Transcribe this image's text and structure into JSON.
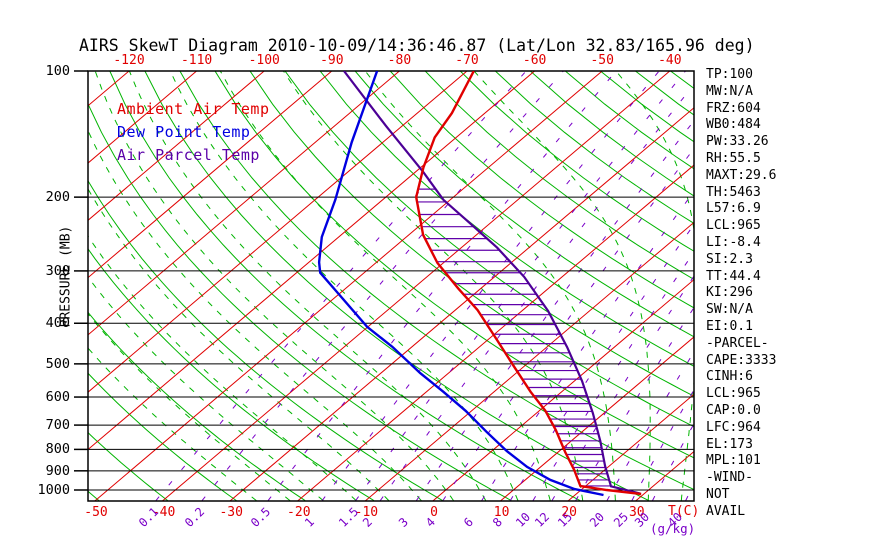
{
  "title": "AIRS SkewT Diagram 2010-10-09/14:36:46.87 (Lat/Lon 32.83/165.96 deg)",
  "legend": {
    "items": [
      {
        "label": "Ambient Air Temp",
        "color": "#e00000"
      },
      {
        "label": "Dew Point Temp",
        "color": "#0000e0"
      },
      {
        "label": "Air Parcel Temp",
        "color": "#5a00a8"
      }
    ]
  },
  "axes": {
    "pressure_label": "PRESSURE (MB)",
    "pressure_ticks": [
      100,
      200,
      300,
      400,
      500,
      600,
      700,
      800,
      900,
      1000
    ],
    "temp_top_ticks": [
      -120,
      -110,
      -100,
      -90,
      -80,
      -70,
      -60,
      -50,
      -40
    ],
    "temp_bottom_ticks": [
      -50,
      -40,
      -30,
      -20,
      -10,
      0,
      10,
      20,
      30
    ],
    "temp_unit": "T(C)",
    "mixing_ratio_ticks": [
      "0.1",
      "0.2",
      "0.5",
      "1",
      "1.5",
      "2",
      "3",
      "4",
      "6",
      "8",
      "10",
      "12",
      "15",
      "20",
      "25",
      "30",
      "40"
    ],
    "mixing_ratio_unit": "(g/kg)"
  },
  "stats_panel": {
    "lines": [
      "TP:100",
      "MW:N/A",
      "FRZ:604",
      "WB0:484",
      "PW:33.26",
      "RH:55.5",
      "MAXT:29.6",
      "TH:5463",
      "L57:6.9",
      "LCL:965",
      "LI:-8.4",
      "SI:2.3",
      "TT:44.4",
      "KI:296",
      "SW:N/A",
      "EI:0.1",
      "-PARCEL-",
      "CAPE:3333",
      "CINH:6",
      "LCL:965",
      "CAP:0.0",
      "LFC:964",
      "EL:173",
      "MPL:101",
      "-WIND-",
      "NOT",
      "AVAIL"
    ]
  },
  "colors": {
    "isotherm_red": "#e00000",
    "adiabat_green": "#00b400",
    "dewpoint_blue": "#0000e0",
    "mixing_purple": "#7a00c8",
    "parcel_purple": "#4c0096",
    "hatch_purple": "#6000aa",
    "axis_black": "#000000"
  },
  "chart_data": {
    "type": "line",
    "subtype": "skewt-logp",
    "title": "AIRS SkewT Diagram 2010-10-09/14:36:46.87 (Lat/Lon 32.83/165.96 deg)",
    "pressure_axis": {
      "label": "PRESSURE (MB)",
      "scale": "log",
      "range": [
        100,
        1060
      ],
      "ticks": [
        100,
        200,
        300,
        400,
        500,
        600,
        700,
        800,
        900,
        1000
      ]
    },
    "temperature_axis": {
      "label": "T(C)",
      "skewed": true,
      "isotherm_step_c": 10,
      "bottom_ticks": [
        -50,
        -40,
        -30,
        -20,
        -10,
        0,
        10,
        20,
        30
      ],
      "top_ticks": [
        -120,
        -110,
        -100,
        -90,
        -80,
        -70,
        -60,
        -50,
        -40
      ]
    },
    "mixing_ratio_lines_gkg": [
      0.1,
      0.2,
      0.5,
      1,
      1.5,
      2,
      3,
      4,
      6,
      8,
      10,
      12,
      15,
      20,
      25,
      30,
      40
    ],
    "dry_adiabats_theta_k": {
      "min": 200,
      "max": 470,
      "step": 10
    },
    "moist_adiabats_thetaw_c": {
      "min": -30,
      "max": 45,
      "step": 5
    },
    "series": [
      {
        "name": "Ambient Air Temp",
        "color": "#e00000",
        "points_p_t": [
          [
            100,
            -69
          ],
          [
            126,
            -64.9
          ],
          [
            144,
            -63.2
          ],
          [
            170,
            -59.6
          ],
          [
            200,
            -55.5
          ],
          [
            246,
            -47.9
          ],
          [
            287,
            -40.9
          ],
          [
            330,
            -33.4
          ],
          [
            372,
            -26.7
          ],
          [
            436,
            -18.9
          ],
          [
            508,
            -11.4
          ],
          [
            583,
            -4.6
          ],
          [
            647,
            0.9
          ],
          [
            719,
            5.8
          ],
          [
            811,
            11
          ],
          [
            896,
            15.5
          ],
          [
            978,
            19.2
          ],
          [
            1000,
            23.8
          ],
          [
            1022,
            29.6
          ]
        ]
      },
      {
        "name": "Dew Point Temp",
        "color": "#0000e0",
        "points_p_t": [
          [
            100,
            -83.3
          ],
          [
            148,
            -74.6
          ],
          [
            203,
            -67
          ],
          [
            249,
            -62.5
          ],
          [
            286,
            -58.5
          ],
          [
            303,
            -56.5
          ],
          [
            333,
            -51.3
          ],
          [
            408,
            -40.1
          ],
          [
            456,
            -32.8
          ],
          [
            526,
            -24.2
          ],
          [
            583,
            -17.5
          ],
          [
            647,
            -10.9
          ],
          [
            728,
            -4
          ],
          [
            807,
            2.2
          ],
          [
            881,
            8
          ],
          [
            946,
            13.7
          ],
          [
            995,
            18.9
          ],
          [
            1028,
            24.2
          ]
        ]
      },
      {
        "name": "Air Parcel Temp",
        "color": "#4c0096",
        "points_p_t": [
          [
            100,
            -88.2
          ],
          [
            135,
            -72.5
          ],
          [
            174,
            -58.9
          ],
          [
            203,
            -51
          ],
          [
            226,
            -44.3
          ],
          [
            264,
            -34.7
          ],
          [
            310,
            -25.6
          ],
          [
            374,
            -16.1
          ],
          [
            456,
            -7
          ],
          [
            549,
            1.1
          ],
          [
            655,
            8.3
          ],
          [
            764,
            14.3
          ],
          [
            877,
            19.4
          ],
          [
            980,
            23.8
          ],
          [
            1020,
            29.4
          ]
        ]
      }
    ],
    "cape_hatch_between": [
      "Ambient Air Temp",
      "Air Parcel Temp"
    ],
    "cape_hatch_p_range": [
      180,
      978
    ]
  }
}
